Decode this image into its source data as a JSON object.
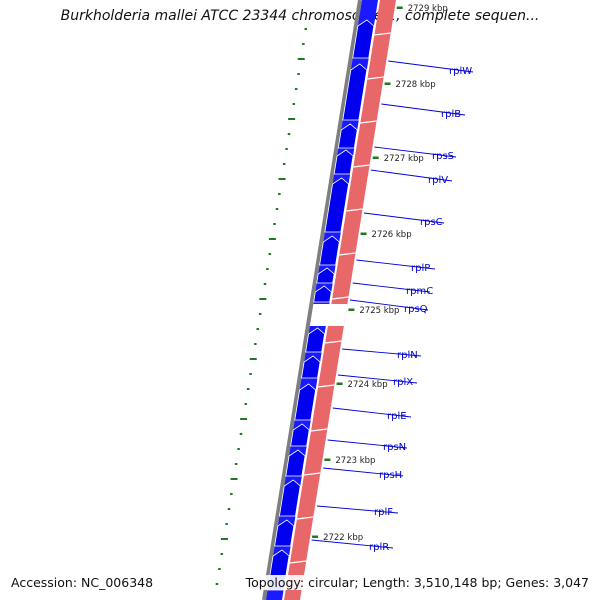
{
  "title": "Burkholderia mallei ATCC 23344 chromosome 1, complete sequen...",
  "accession_text": "Accession: NC_006348",
  "topology_text": "Topology: circular; Length: 3,510,148 bp; Genes: 3,047",
  "colors": {
    "forward_gene": "#0000ee",
    "track_blue": "#1a1aff",
    "track_red": "#e8686a",
    "track_grey": "#7f7f7f",
    "gc_skew": "#1f7a1f",
    "label_line": "#0000dd",
    "label_text": "#0000cc"
  },
  "kbp_ticks": [
    {
      "label": "2729 kbp"
    },
    {
      "label": "2728 kbp"
    },
    {
      "label": "2727 kbp"
    },
    {
      "label": "2726 kbp"
    },
    {
      "label": "2725 kbp"
    },
    {
      "label": "2724 kbp"
    },
    {
      "label": "2723 kbp"
    },
    {
      "label": "2722 kbp"
    }
  ],
  "genes": [
    {
      "name": "rplW"
    },
    {
      "name": "rplB"
    },
    {
      "name": "rpsS"
    },
    {
      "name": "rplV"
    },
    {
      "name": "rpsC"
    },
    {
      "name": "rplP"
    },
    {
      "name": "rpmC"
    },
    {
      "name": "rpsQ"
    },
    {
      "name": "rplN"
    },
    {
      "name": "rplX"
    },
    {
      "name": "rplE"
    },
    {
      "name": "rpsN"
    },
    {
      "name": "rpsH"
    },
    {
      "name": "rplF"
    },
    {
      "name": "rplR"
    }
  ]
}
